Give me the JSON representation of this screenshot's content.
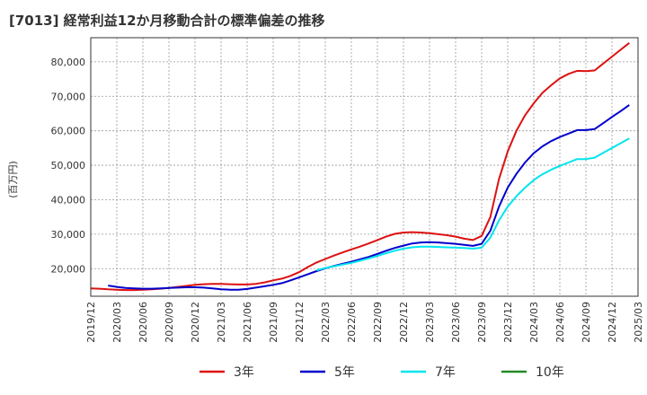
{
  "chart_data": {
    "type": "line",
    "title": "[7013]  経常利益12か月移動合計の標準偏差の推移",
    "ylabel": "(百万円)",
    "xlabel": "",
    "ylim": [
      12000,
      87000
    ],
    "y_ticks": [
      20000,
      30000,
      40000,
      50000,
      60000,
      70000,
      80000
    ],
    "y_tick_labels": [
      "20,000",
      "30,000",
      "40,000",
      "50,000",
      "60,000",
      "70,000",
      "80,000"
    ],
    "x_tick_labels": [
      "2019/12",
      "2020/03",
      "2020/06",
      "2020/09",
      "2020/12",
      "2021/03",
      "2021/06",
      "2021/09",
      "2021/12",
      "2022/03",
      "2022/06",
      "2022/09",
      "2022/12",
      "2023/03",
      "2023/06",
      "2023/09",
      "2023/12",
      "2024/03",
      "2024/06",
      "2024/09",
      "2024/12",
      "2025/03"
    ],
    "x_range_months": [
      0,
      63
    ],
    "grid": true,
    "legend_position": "bottom",
    "series": [
      {
        "name": "3年",
        "color": "#dd1111",
        "points": [
          [
            0,
            14300
          ],
          [
            1,
            14200
          ],
          [
            2,
            14000
          ],
          [
            3,
            13900
          ],
          [
            4,
            13800
          ],
          [
            5,
            13800
          ],
          [
            6,
            13900
          ],
          [
            7,
            14000
          ],
          [
            8,
            14200
          ],
          [
            9,
            14400
          ],
          [
            10,
            14700
          ],
          [
            11,
            15000
          ],
          [
            12,
            15300
          ],
          [
            13,
            15500
          ],
          [
            14,
            15600
          ],
          [
            15,
            15600
          ],
          [
            16,
            15500
          ],
          [
            17,
            15400
          ],
          [
            18,
            15400
          ],
          [
            19,
            15600
          ],
          [
            20,
            16000
          ],
          [
            21,
            16600
          ],
          [
            22,
            17100
          ],
          [
            23,
            17900
          ],
          [
            24,
            19000
          ],
          [
            25,
            20500
          ],
          [
            26,
            21800
          ],
          [
            27,
            22800
          ],
          [
            28,
            23800
          ],
          [
            29,
            24700
          ],
          [
            30,
            25600
          ],
          [
            31,
            26400
          ],
          [
            32,
            27300
          ],
          [
            33,
            28300
          ],
          [
            34,
            29300
          ],
          [
            35,
            30100
          ],
          [
            36,
            30500
          ],
          [
            37,
            30600
          ],
          [
            38,
            30500
          ],
          [
            39,
            30300
          ],
          [
            40,
            30000
          ],
          [
            41,
            29700
          ],
          [
            42,
            29300
          ],
          [
            43,
            28700
          ],
          [
            44,
            28300
          ],
          [
            45,
            29500
          ],
          [
            46,
            35000
          ],
          [
            47,
            46000
          ],
          [
            48,
            54000
          ],
          [
            49,
            60000
          ],
          [
            50,
            64500
          ],
          [
            51,
            68000
          ],
          [
            52,
            71000
          ],
          [
            53,
            73200
          ],
          [
            54,
            75200
          ],
          [
            55,
            76500
          ],
          [
            56,
            77400
          ],
          [
            57,
            77300
          ],
          [
            58,
            77500
          ],
          [
            59,
            79500
          ],
          [
            60,
            81500
          ],
          [
            61,
            83500
          ],
          [
            62,
            85500
          ]
        ]
      },
      {
        "name": "5年",
        "color": "#0000cc",
        "points": [
          [
            2,
            15100
          ],
          [
            3,
            14700
          ],
          [
            4,
            14400
          ],
          [
            5,
            14300
          ],
          [
            6,
            14200
          ],
          [
            7,
            14200
          ],
          [
            8,
            14300
          ],
          [
            9,
            14400
          ],
          [
            10,
            14500
          ],
          [
            11,
            14600
          ],
          [
            12,
            14600
          ],
          [
            13,
            14500
          ],
          [
            14,
            14300
          ],
          [
            15,
            14000
          ],
          [
            16,
            13900
          ],
          [
            17,
            13900
          ],
          [
            18,
            14100
          ],
          [
            19,
            14500
          ],
          [
            20,
            14900
          ],
          [
            21,
            15300
          ],
          [
            22,
            15800
          ],
          [
            23,
            16600
          ],
          [
            24,
            17500
          ],
          [
            25,
            18400
          ],
          [
            26,
            19300
          ],
          [
            27,
            20100
          ],
          [
            28,
            20800
          ],
          [
            29,
            21400
          ],
          [
            30,
            22000
          ],
          [
            31,
            22700
          ],
          [
            32,
            23400
          ],
          [
            33,
            24300
          ],
          [
            34,
            25200
          ],
          [
            35,
            26000
          ],
          [
            36,
            26700
          ],
          [
            37,
            27300
          ],
          [
            38,
            27600
          ],
          [
            39,
            27700
          ],
          [
            40,
            27600
          ],
          [
            41,
            27400
          ],
          [
            42,
            27200
          ],
          [
            43,
            26900
          ],
          [
            44,
            26600
          ],
          [
            45,
            27200
          ],
          [
            46,
            31000
          ],
          [
            47,
            38000
          ],
          [
            48,
            43500
          ],
          [
            49,
            47500
          ],
          [
            50,
            50800
          ],
          [
            51,
            53500
          ],
          [
            52,
            55500
          ],
          [
            53,
            57000
          ],
          [
            54,
            58200
          ],
          [
            55,
            59200
          ],
          [
            56,
            60200
          ],
          [
            57,
            60200
          ],
          [
            58,
            60500
          ],
          [
            59,
            62200
          ],
          [
            60,
            64000
          ],
          [
            61,
            65700
          ],
          [
            62,
            67500
          ]
        ]
      },
      {
        "name": "7年",
        "color": "#00e5ee",
        "points": [
          [
            26,
            19500
          ],
          [
            27,
            20200
          ],
          [
            28,
            20700
          ],
          [
            29,
            21200
          ],
          [
            30,
            21700
          ],
          [
            31,
            22300
          ],
          [
            32,
            23000
          ],
          [
            33,
            23700
          ],
          [
            34,
            24500
          ],
          [
            35,
            25200
          ],
          [
            36,
            25800
          ],
          [
            37,
            26200
          ],
          [
            38,
            26400
          ],
          [
            39,
            26400
          ],
          [
            40,
            26300
          ],
          [
            41,
            26200
          ],
          [
            42,
            26100
          ],
          [
            43,
            26000
          ],
          [
            44,
            25800
          ],
          [
            45,
            26100
          ],
          [
            46,
            29000
          ],
          [
            47,
            34000
          ],
          [
            48,
            38000
          ],
          [
            49,
            41000
          ],
          [
            50,
            43500
          ],
          [
            51,
            45700
          ],
          [
            52,
            47400
          ],
          [
            53,
            48700
          ],
          [
            54,
            49800
          ],
          [
            55,
            50800
          ],
          [
            56,
            51800
          ],
          [
            57,
            51800
          ],
          [
            58,
            52200
          ],
          [
            59,
            53600
          ],
          [
            60,
            55000
          ],
          [
            61,
            56400
          ],
          [
            62,
            57800
          ]
        ]
      },
      {
        "name": "10年",
        "color": "#228b22",
        "points": []
      }
    ]
  }
}
